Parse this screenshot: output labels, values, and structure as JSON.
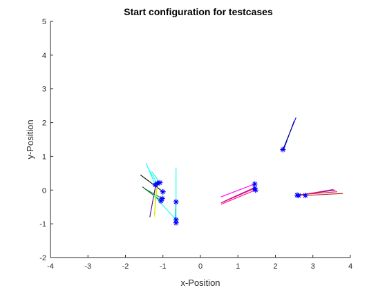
{
  "chart_data": {
    "type": "scatter",
    "title": "Start configuration for testcases",
    "xlabel": "x-Position",
    "ylabel": "y-Position",
    "xlim": [
      -4,
      4
    ],
    "ylim": [
      -2,
      5
    ],
    "xticks": [
      -4,
      -3,
      -2,
      -1,
      0,
      1,
      2,
      3,
      4
    ],
    "yticks": [
      -2,
      -1,
      0,
      1,
      2,
      3,
      4,
      5
    ],
    "grid": false,
    "marker": "asterisk",
    "marker_color": "#0000ff",
    "points": [
      {
        "x": -1.15,
        "y": 0.2
      },
      {
        "x": -1.2,
        "y": 0.15
      },
      {
        "x": -1.08,
        "y": 0.22
      },
      {
        "x": -1.0,
        "y": -0.05
      },
      {
        "x": -1.02,
        "y": -0.25
      },
      {
        "x": -1.05,
        "y": -0.32
      },
      {
        "x": -0.65,
        "y": -0.35
      },
      {
        "x": -0.65,
        "y": -0.88
      },
      {
        "x": -0.65,
        "y": -0.97
      },
      {
        "x": 1.45,
        "y": 0.18
      },
      {
        "x": 1.45,
        "y": 0.05
      },
      {
        "x": 1.47,
        "y": 0.0
      },
      {
        "x": 2.2,
        "y": 1.2
      },
      {
        "x": 2.58,
        "y": -0.15
      },
      {
        "x": 2.62,
        "y": -0.16
      },
      {
        "x": 2.8,
        "y": -0.16
      }
    ],
    "segments": [
      {
        "x1": -1.2,
        "y1": 0.15,
        "x2": -1.45,
        "y2": 0.8,
        "color": "#00ffff"
      },
      {
        "x1": -1.15,
        "y1": 0.2,
        "x2": -1.4,
        "y2": 0.65,
        "color": "#00ffff"
      },
      {
        "x1": -1.08,
        "y1": 0.22,
        "x2": -1.3,
        "y2": 0.55,
        "color": "#40e0d0"
      },
      {
        "x1": -1.0,
        "y1": -0.05,
        "x2": -1.6,
        "y2": 0.45,
        "color": "#000000"
      },
      {
        "x1": -1.02,
        "y1": -0.25,
        "x2": -1.5,
        "y2": 0.05,
        "color": "#008080"
      },
      {
        "x1": -1.05,
        "y1": -0.32,
        "x2": -1.55,
        "y2": 0.1,
        "color": "#006400"
      },
      {
        "x1": -1.2,
        "y1": 0.15,
        "x2": -1.22,
        "y2": -0.8,
        "color": "#ffff00"
      },
      {
        "x1": -1.15,
        "y1": 0.2,
        "x2": -1.23,
        "y2": -0.75,
        "color": "#c8e600"
      },
      {
        "x1": -1.2,
        "y1": 0.1,
        "x2": -1.35,
        "y2": -0.8,
        "color": "#4b0082"
      },
      {
        "x1": -0.65,
        "y1": -0.88,
        "x2": -1.25,
        "y2": -0.15,
        "color": "#00ffff"
      },
      {
        "x1": -0.65,
        "y1": -0.97,
        "x2": -0.65,
        "y2": 0.65,
        "color": "#00ffff"
      },
      {
        "x1": -0.65,
        "y1": -0.35,
        "x2": -0.68,
        "y2": -0.95,
        "color": "#00ced1"
      },
      {
        "x1": 1.45,
        "y1": 0.18,
        "x2": 0.55,
        "y2": -0.2,
        "color": "#ff00ff"
      },
      {
        "x1": 1.45,
        "y1": 0.05,
        "x2": 0.55,
        "y2": -0.38,
        "color": "#e0007a"
      },
      {
        "x1": 1.47,
        "y1": 0.0,
        "x2": 0.55,
        "y2": -0.42,
        "color": "#ff1493"
      },
      {
        "x1": 1.45,
        "y1": 0.08,
        "x2": 0.6,
        "y2": -0.35,
        "color": "#c71585"
      },
      {
        "x1": 2.2,
        "y1": 1.2,
        "x2": 2.55,
        "y2": 2.15,
        "color": "#0000ff"
      },
      {
        "x1": 2.22,
        "y1": 1.2,
        "x2": 2.5,
        "y2": 2.05,
        "color": "#00008b"
      },
      {
        "x1": 2.58,
        "y1": -0.15,
        "x2": 3.6,
        "y2": 0.0,
        "color": "#8b008b"
      },
      {
        "x1": 2.62,
        "y1": -0.16,
        "x2": 3.55,
        "y2": 0.02,
        "color": "#c71585"
      },
      {
        "x1": 2.8,
        "y1": -0.16,
        "x2": 3.8,
        "y2": -0.1,
        "color": "#b22222"
      },
      {
        "x1": 2.6,
        "y1": -0.14,
        "x2": 3.65,
        "y2": -0.05,
        "color": "#dc143c"
      }
    ]
  }
}
